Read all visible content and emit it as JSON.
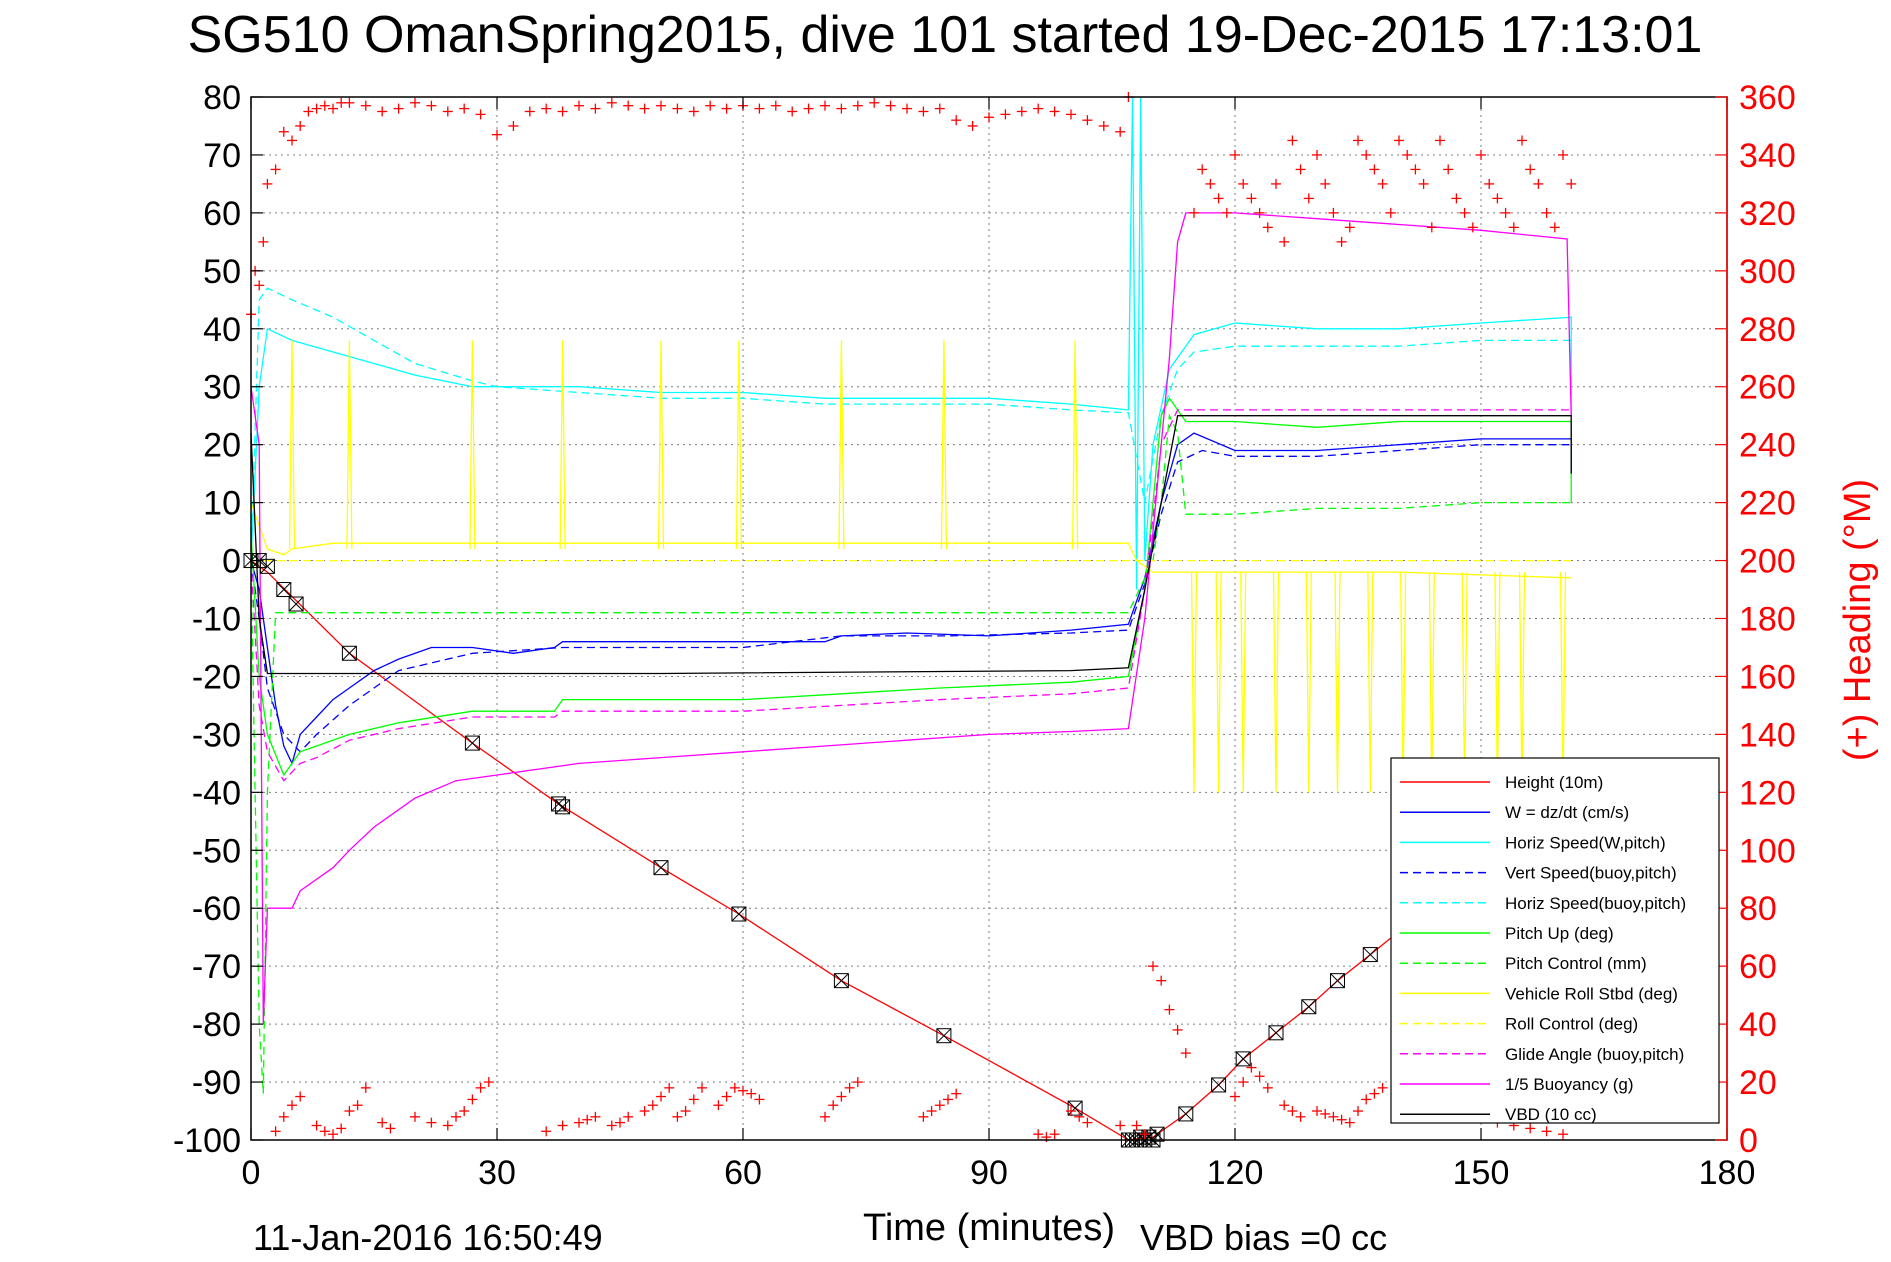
{
  "title": "SG510 OmanSpring2015, dive 101 started 19-Dec-2015 17:13:01",
  "footer": {
    "timestamp": "11-Jan-2016 16:50:49",
    "vbd_bias": "VBD bias =0 cc"
  },
  "colors": {
    "height": "#ff0000",
    "w": "#0000ff",
    "horiz_speed": "#00ffff",
    "pitch": "#00ff00",
    "roll": "#ffff00",
    "glide": "#ff00ff",
    "buoyancy": "#ff00ff",
    "vbd": "#000000",
    "heading": "#ff0000",
    "grid": "#7f7f7f"
  },
  "chart_data": {
    "type": "line",
    "title": "SG510 OmanSpring2015, dive 101 started 19-Dec-2015 17:13:01",
    "xlabel": "Time (minutes)",
    "ylabel": "",
    "y2label": "(+) Heading (°M)",
    "xlim": [
      0,
      180
    ],
    "ylim": [
      -100,
      80
    ],
    "y2lim": [
      0,
      360
    ],
    "x_ticks": [
      0,
      30,
      60,
      90,
      120,
      150,
      180
    ],
    "y_ticks": [
      80,
      70,
      60,
      50,
      40,
      30,
      20,
      10,
      0,
      -10,
      -20,
      -30,
      -40,
      -50,
      -60,
      -70,
      -80,
      -90,
      -100
    ],
    "y2_ticks": [
      360,
      340,
      320,
      300,
      280,
      260,
      240,
      220,
      200,
      180,
      160,
      140,
      120,
      100,
      80,
      60,
      40,
      20,
      0
    ],
    "grid": true,
    "legend_position": "bottom-right",
    "series": [
      {
        "name": "Height (10m)",
        "key": "height",
        "style": "solid",
        "x": [
          0,
          2,
          12,
          27,
          37.5,
          50,
          59.5,
          72,
          84.5,
          100.5,
          107,
          110,
          114,
          118,
          121,
          125,
          129,
          132.5,
          136.5,
          140,
          145
        ],
        "y": [
          0,
          -2,
          -16,
          -31.5,
          -42,
          -53,
          -61,
          -72.5,
          -82,
          -94.5,
          -100,
          -99.5,
          -95.5,
          -90.5,
          -86,
          -81.5,
          -77,
          -72.5,
          -68,
          -64,
          -58
        ]
      },
      {
        "name": "W = dz/dt (cm/s)",
        "key": "w",
        "style": "solid",
        "x": [
          0,
          1,
          2,
          3,
          4,
          5,
          6,
          8,
          10,
          12,
          15,
          18,
          22,
          27,
          32,
          37,
          38,
          45,
          50,
          60,
          70,
          72,
          80,
          90,
          100,
          107,
          109,
          111,
          113,
          115,
          120,
          130,
          140,
          150,
          161,
          161
        ],
        "y": [
          0,
          -5,
          -15,
          -25,
          -32,
          -35,
          -30,
          -27,
          -24,
          -22,
          -19,
          -17,
          -15,
          -15,
          -16,
          -15,
          -14,
          -14,
          -14,
          -14,
          -14,
          -13,
          -12.5,
          -13,
          -12,
          -11,
          -3,
          10,
          20,
          22,
          19,
          19,
          20,
          21,
          21,
          15
        ]
      },
      {
        "name": "Horiz Speed(W,pitch)",
        "key": "horiz_speed",
        "style": "solid",
        "x": [
          0,
          1,
          2,
          5,
          10,
          15,
          20,
          27,
          30,
          40,
          50,
          60,
          70,
          80,
          90,
          100,
          107,
          107.5,
          108,
          108.5,
          109,
          110,
          112,
          115,
          120,
          130,
          140,
          150,
          161,
          161
        ],
        "y": [
          0,
          30,
          40,
          38,
          36,
          34,
          32,
          30,
          30,
          30,
          29,
          29,
          28,
          28,
          28,
          27,
          26,
          80,
          -5,
          80,
          0,
          20,
          33,
          39,
          41,
          40,
          40,
          41,
          42,
          25
        ]
      },
      {
        "name": "Vert Speed(buoy,pitch)",
        "key": "vert_speed_buoy",
        "style": "dashed",
        "x": [
          0,
          1,
          2,
          4,
          6,
          8,
          12,
          18,
          27,
          38,
          50,
          60,
          72,
          85,
          100,
          107,
          109,
          111,
          113,
          116,
          120,
          130,
          140,
          150,
          161
        ],
        "y": [
          0,
          -10,
          -22,
          -30,
          -33,
          -30,
          -25,
          -19,
          -16,
          -15,
          -15,
          -15,
          -13,
          -13,
          -12.5,
          -12,
          -4,
          8,
          17,
          19,
          18,
          18,
          19,
          20,
          20
        ]
      },
      {
        "name": "Horiz Speed(buoy,pitch)",
        "key": "horiz_speed_buoy",
        "style": "dashed",
        "x": [
          0,
          1,
          2,
          5,
          10,
          15,
          20,
          27,
          30,
          40,
          50,
          60,
          70,
          80,
          90,
          100,
          107,
          109,
          111,
          113,
          115,
          120,
          130,
          140,
          150,
          161
        ],
        "y": [
          0,
          45,
          47,
          45,
          42,
          38,
          34,
          31,
          30,
          29,
          28,
          28,
          27,
          27,
          27,
          26,
          25.5,
          10,
          25,
          33,
          36,
          37,
          37,
          37,
          38,
          38
        ]
      },
      {
        "name": "Pitch Up (deg)",
        "key": "pitch_up",
        "style": "solid",
        "x": [
          0,
          1,
          2,
          4,
          6,
          8,
          12,
          18,
          27,
          37,
          38,
          50,
          60,
          72,
          84,
          100,
          107,
          109,
          111,
          112,
          113,
          114,
          120,
          130,
          140,
          150,
          161,
          161
        ],
        "y": [
          5,
          -20,
          -30,
          -37,
          -33,
          -32,
          -30,
          -28,
          -26,
          -26,
          -24,
          -24,
          -24,
          -23,
          -22,
          -21,
          -20,
          -5,
          25,
          28,
          26,
          24,
          24,
          23,
          24,
          24,
          24,
          10
        ]
      },
      {
        "name": "Pitch Control (mm)",
        "key": "pitch_control",
        "style": "dashed",
        "x": [
          0,
          1,
          1.5,
          2,
          3,
          10,
          50,
          100,
          107,
          110,
          111,
          112,
          113,
          114,
          120,
          130,
          140,
          150,
          161
        ],
        "y": [
          0,
          -80,
          -92,
          -40,
          -9,
          -9,
          -9,
          -9,
          -9,
          0,
          10,
          25,
          22,
          8,
          8,
          9,
          9,
          10,
          10
        ]
      },
      {
        "name": "Vehicle Roll Stbd (deg)",
        "key": "vehicle_roll",
        "style": "solid",
        "x": [
          0,
          2,
          4,
          5,
          10,
          20,
          27,
          40,
          60,
          80,
          100,
          107,
          108,
          110,
          115,
          120,
          140,
          161
        ],
        "y": [
          10,
          2,
          1,
          2,
          3,
          3,
          3,
          3,
          3,
          3,
          3,
          3,
          0,
          -2,
          -2,
          -2,
          -2,
          -3
        ]
      },
      {
        "name": "Roll Control (deg)",
        "key": "roll_control",
        "style": "dashed",
        "x": [
          0,
          2,
          10,
          40,
          80,
          107,
          108,
          110,
          130,
          161
        ],
        "y": [
          0,
          0,
          0,
          0,
          0,
          0,
          0,
          0,
          0,
          0
        ]
      },
      {
        "name": "Glide Angle (buoy,pitch)",
        "key": "glide_angle",
        "style": "dashed",
        "x": [
          0,
          1,
          2,
          4,
          6,
          8,
          12,
          18,
          27,
          37,
          38,
          50,
          60,
          72,
          84,
          100,
          107,
          109,
          111,
          113,
          116,
          120,
          130,
          140,
          150,
          161
        ],
        "y": [
          0,
          -25,
          -33,
          -38,
          -35,
          -34,
          -31,
          -29,
          -27,
          -27,
          -26,
          -26,
          -26,
          -25,
          -24,
          -23,
          -22,
          -5,
          20,
          26,
          26,
          26,
          26,
          26,
          26,
          26
        ]
      },
      {
        "name": "1/5 Buoyancy (g)",
        "key": "buoyancy",
        "style": "solid",
        "x": [
          0,
          1,
          1.5,
          2,
          5,
          6,
          10,
          12,
          15,
          20,
          25,
          30,
          40,
          50,
          60,
          70,
          80,
          90,
          100,
          107,
          109,
          110,
          111,
          112,
          113,
          114,
          120,
          130,
          140,
          150,
          160.5,
          161
        ],
        "y": [
          30,
          20,
          -80,
          -60,
          -60,
          -57,
          -53,
          -50,
          -46,
          -41,
          -38,
          -37,
          -35,
          -34,
          -33,
          -32,
          -31,
          -30,
          -29.5,
          -29,
          -10,
          5,
          20,
          35,
          55,
          60,
          60,
          59,
          58,
          57,
          55.5,
          25
        ]
      },
      {
        "name": "VBD (10 cc)",
        "key": "vbd",
        "style": "solid",
        "x": [
          0,
          1,
          2,
          50,
          100,
          107,
          109,
          111,
          113,
          115,
          161,
          161
        ],
        "y": [
          22,
          -10,
          -19.5,
          -19.5,
          -19,
          -18.5,
          -5,
          10,
          25,
          25,
          25,
          15
        ]
      }
    ],
    "heading": {
      "name": "(+) Heading (°M)",
      "marker": "+",
      "axis": "right",
      "x": [
        0,
        0.5,
        1,
        1.5,
        2,
        3,
        4,
        5,
        6,
        7,
        8,
        9,
        10,
        11,
        12,
        14,
        16,
        18,
        20,
        22,
        24,
        26,
        28,
        30,
        32,
        34,
        36,
        38,
        40,
        42,
        44,
        46,
        48,
        50,
        52,
        54,
        56,
        58,
        60,
        62,
        64,
        66,
        68,
        70,
        72,
        74,
        76,
        78,
        80,
        82,
        84,
        86,
        88,
        90,
        92,
        94,
        96,
        98,
        100,
        102,
        104,
        106,
        107,
        108,
        109,
        110,
        111,
        112,
        113,
        114,
        115,
        116,
        117,
        118,
        119,
        120,
        121,
        122,
        123,
        124,
        125,
        126,
        127,
        128,
        129,
        130,
        131,
        132,
        133,
        134,
        135,
        136,
        137,
        138,
        139,
        140,
        141,
        142,
        143,
        144,
        145,
        146,
        147,
        148,
        149,
        150,
        151,
        152,
        153,
        154,
        155,
        156,
        157,
        158,
        159,
        160,
        161
      ],
      "y": [
        285,
        300,
        295,
        310,
        330,
        335,
        348,
        345,
        350,
        355,
        356,
        357,
        356,
        358,
        358,
        357,
        355,
        356,
        358,
        357,
        355,
        356,
        354,
        347,
        350,
        355,
        356,
        355,
        357,
        356,
        358,
        357,
        356,
        357,
        356,
        355,
        357,
        356,
        357,
        356,
        357,
        355,
        356,
        357,
        356,
        357,
        358,
        357,
        356,
        355,
        356,
        352,
        350,
        353,
        354,
        355,
        356,
        355,
        354,
        352,
        350,
        348,
        360,
        5,
        2,
        60,
        55,
        45,
        38,
        30,
        320,
        335,
        330,
        325,
        320,
        340,
        330,
        325,
        320,
        315,
        330,
        310,
        345,
        335,
        325,
        340,
        330,
        320,
        310,
        315,
        345,
        340,
        335,
        330,
        320,
        345,
        340,
        335,
        330,
        315,
        345,
        335,
        325,
        320,
        315,
        340,
        330,
        325,
        320,
        315,
        345,
        335,
        330,
        320,
        315,
        340,
        330
      ]
    },
    "heading_bottom": {
      "x": [
        3,
        4,
        5,
        6,
        8,
        9,
        10,
        11,
        12,
        13,
        14,
        16,
        17,
        20,
        22,
        24,
        25,
        26,
        27,
        28,
        29,
        36,
        38,
        40,
        41,
        42,
        44,
        45,
        46,
        48,
        49,
        50,
        51,
        52,
        53,
        54,
        55,
        57,
        58,
        59,
        60,
        61,
        62,
        70,
        71,
        72,
        73,
        74,
        82,
        83,
        84,
        85,
        86,
        96,
        97,
        98,
        100,
        101,
        102,
        106,
        120,
        121,
        122,
        123,
        124,
        126,
        127,
        128,
        130,
        131,
        132,
        133,
        134,
        135,
        136,
        137,
        138,
        140,
        141,
        142,
        144,
        146,
        148,
        150,
        152,
        154,
        156,
        158,
        160
      ],
      "y": [
        3,
        8,
        12,
        15,
        5,
        3,
        2,
        4,
        10,
        12,
        18,
        6,
        4,
        8,
        6,
        5,
        8,
        10,
        14,
        18,
        20,
        3,
        5,
        6,
        7,
        8,
        5,
        6,
        8,
        10,
        12,
        15,
        18,
        8,
        10,
        14,
        18,
        12,
        15,
        18,
        17,
        16,
        14,
        8,
        12,
        15,
        18,
        20,
        8,
        10,
        12,
        14,
        16,
        2,
        1,
        2,
        10,
        8,
        6,
        5,
        15,
        20,
        25,
        22,
        18,
        12,
        10,
        8,
        10,
        9,
        8,
        7,
        6,
        10,
        14,
        16,
        18,
        20,
        22,
        18,
        15,
        12,
        10,
        8,
        6,
        5,
        4,
        3,
        2
      ]
    },
    "height_markers_x": [
      0,
      1,
      2,
      4,
      5.5,
      12,
      27,
      37.5,
      38,
      50,
      59.5,
      72,
      84.5,
      100.5,
      107,
      107.5,
      108,
      108.5,
      109,
      109.5,
      110,
      110.5,
      114,
      118,
      121,
      125,
      129,
      132.5,
      136.5
    ],
    "height_markers_y": [
      0,
      0,
      -1,
      -5,
      -7.5,
      -16,
      -31.5,
      -42,
      -42.5,
      -53,
      -61,
      -72.5,
      -82,
      -94.5,
      -100,
      -100,
      -100,
      -99.5,
      -100,
      -99.5,
      -100,
      -99,
      -95.5,
      -90.5,
      -86,
      -81.5,
      -77,
      -72.5,
      -68
    ]
  }
}
